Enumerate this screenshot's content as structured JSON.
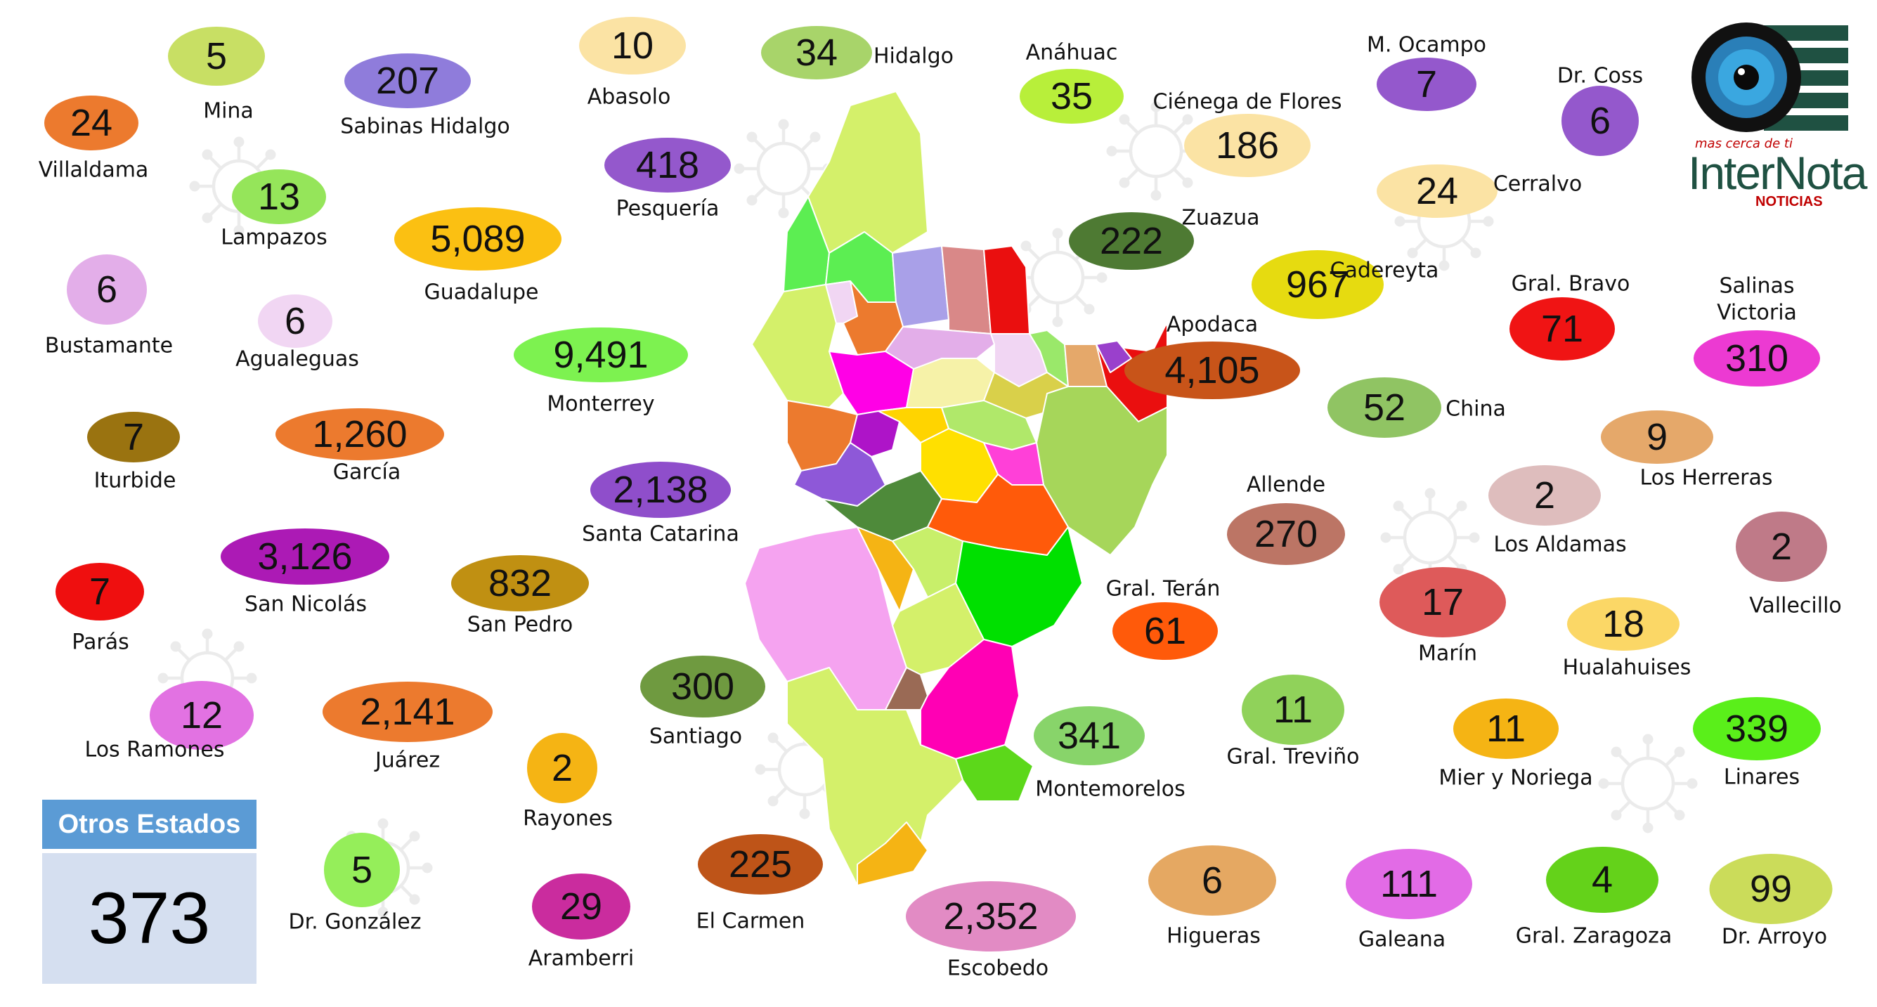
{
  "colors": {
    "otros_header": "#5b9bd5",
    "otros_body": "#d5dff0",
    "logo_green": "#1f5142",
    "logo_red": "#c00000"
  },
  "logo": {
    "tagline": "mas cerca de ti",
    "name": "InterNota",
    "subtitle": "NOTICIAS"
  },
  "otros_estados": {
    "label": "Otros Estados",
    "value": "373"
  },
  "municipios": [
    {
      "name": "Mina",
      "value": "5",
      "color": "#c8df64"
    },
    {
      "name": "Sabinas Hidalgo",
      "value": "207",
      "color": "#8f7cdb"
    },
    {
      "name": "Abasolo",
      "value": "10",
      "color": "#fbe3a4"
    },
    {
      "name": "Hidalgo",
      "value": "34",
      "color": "#a8d46a"
    },
    {
      "name": "Anáhuac",
      "value": "35",
      "color": "#b8ef3a"
    },
    {
      "name": "Ciénega de Flores",
      "value": "186",
      "color": "#fbe3a4"
    },
    {
      "name": "M. Ocampo",
      "value": "7",
      "color": "#9458cc"
    },
    {
      "name": "Dr. Coss",
      "value": "6",
      "color": "#9458cc"
    },
    {
      "name": "Villaldama",
      "value": "24",
      "color": "#ec7a2e"
    },
    {
      "name": "Lampazos",
      "value": "13",
      "color": "#95e55a"
    },
    {
      "name": "Pesquería",
      "value": "418",
      "color": "#9458cc"
    },
    {
      "name": "Cerralvo",
      "value": "24",
      "color": "#fbe3a4"
    },
    {
      "name": "Guadalupe",
      "value": "5,089",
      "color": "#fbc012"
    },
    {
      "name": "Zuazua",
      "value": "222",
      "color": "#4e7a33"
    },
    {
      "name": "Cadereyta",
      "value": "967",
      "color": "#e6db10"
    },
    {
      "name": "Bustamante",
      "value": "6",
      "color": "#e3aee9"
    },
    {
      "name": "Agualeguas",
      "value": "6",
      "color": "#f1d6f3"
    },
    {
      "name": "Gral. Bravo",
      "value": "71",
      "color": "#f01414"
    },
    {
      "name": "Salinas Victoria",
      "value": "310",
      "color": "#ec3ad2"
    },
    {
      "name": "Monterrey",
      "value": "9,491",
      "color": "#7df250"
    },
    {
      "name": "Apodaca",
      "value": "4,105",
      "color": "#c85419"
    },
    {
      "name": "China",
      "value": "52",
      "color": "#90c463"
    },
    {
      "name": "Iturbide",
      "value": "7",
      "color": "#9a7310"
    },
    {
      "name": "García",
      "value": "1,260",
      "color": "#ec7a2e"
    },
    {
      "name": "Los Herreras",
      "value": "9",
      "color": "#e5a86a"
    },
    {
      "name": "Allende",
      "value": "270",
      "color": "#bc7565"
    },
    {
      "name": "Los Aldamas",
      "value": "2",
      "color": "#debdbd"
    },
    {
      "name": "Santa Catarina",
      "value": "2,138",
      "color": "#8f4ecb"
    },
    {
      "name": "Vallecillo",
      "value": "2",
      "color": "#bf7a88"
    },
    {
      "name": "San Nicolás",
      "value": "3,126",
      "color": "#ac1ab5"
    },
    {
      "name": "Gral. Terán",
      "value": "61",
      "color": "#ff5a0a"
    },
    {
      "name": "San Pedro",
      "value": "832",
      "color": "#c09012"
    },
    {
      "name": "Parás",
      "value": "7",
      "color": "#ef0f0f"
    },
    {
      "name": "Marín",
      "value": "17",
      "color": "#de5a5a"
    },
    {
      "name": "Hualahuises",
      "value": "18",
      "color": "#fbd766"
    },
    {
      "name": "Santiago",
      "value": "300",
      "color": "#6f9a40"
    },
    {
      "name": "Los Ramones",
      "value": "12",
      "color": "#e272e2"
    },
    {
      "name": "Juárez",
      "value": "2,141",
      "color": "#ec7a2e"
    },
    {
      "name": "Gral. Treviño",
      "value": "11",
      "color": "#90d25a"
    },
    {
      "name": "Montemorelos",
      "value": "341",
      "color": "#88d46a"
    },
    {
      "name": "Mier y Noriega",
      "value": "11",
      "color": "#f5b414"
    },
    {
      "name": "Linares",
      "value": "339",
      "color": "#5aef1a"
    },
    {
      "name": "Rayones",
      "value": "2",
      "color": "#f5b414"
    },
    {
      "name": "Dr. González",
      "value": "5",
      "color": "#95ee5a"
    },
    {
      "name": "El Carmen",
      "value": "225",
      "color": "#be5418"
    },
    {
      "name": "Aramberri",
      "value": "29",
      "color": "#ca2c9e"
    },
    {
      "name": "Escobedo",
      "value": "2,352",
      "color": "#e28bc4"
    },
    {
      "name": "Higueras",
      "value": "6",
      "color": "#e5a862"
    },
    {
      "name": "Galeana",
      "value": "111",
      "color": "#e26be6"
    },
    {
      "name": "Gral. Zaragoza",
      "value": "4",
      "color": "#64d21a"
    },
    {
      "name": "Dr. Arroyo",
      "value": "99",
      "color": "#cbdc5a"
    }
  ]
}
